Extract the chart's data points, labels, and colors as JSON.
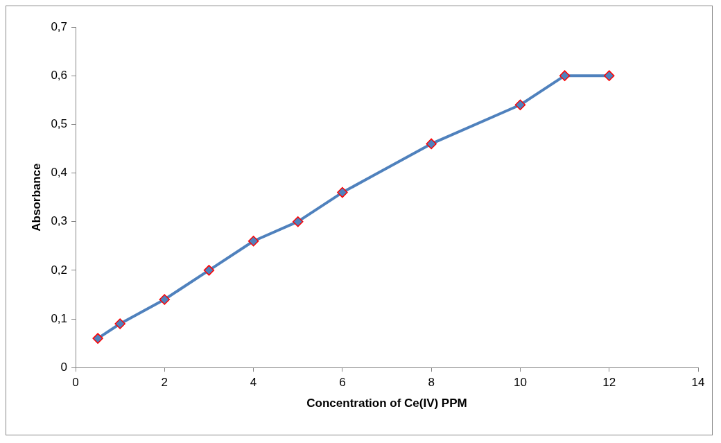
{
  "chart_data": {
    "type": "line",
    "xlabel": "Concentration of Ce(IV) PPM",
    "ylabel": "Absorbance",
    "x": [
      0.5,
      1,
      2,
      3,
      4,
      5,
      6,
      8,
      10,
      11,
      12
    ],
    "series": [
      {
        "color": "#4f81bd",
        "values": [
          0.06,
          0.09,
          0.14,
          0.2,
          0.26,
          0.3,
          0.36,
          0.46,
          0.54,
          0.6,
          0.6
        ]
      }
    ],
    "xlim": [
      0,
      14
    ],
    "xticks": [
      0,
      2,
      4,
      6,
      8,
      10,
      12,
      14
    ],
    "ylim": [
      0,
      0.7
    ],
    "yticks": [
      0,
      {
        "value": 0.1,
        "label": "0,1"
      },
      {
        "value": 0.2,
        "label": "0,2"
      },
      {
        "value": 0.3,
        "label": "0,3"
      },
      {
        "value": 0.4,
        "label": "0,4"
      },
      {
        "value": 0.5,
        "label": "0,5"
      },
      {
        "value": 0.6,
        "label": "0,6"
      },
      {
        "value": 0.7,
        "label": "0,7"
      }
    ],
    "marker": "diamond",
    "line_style": "solid",
    "grid": false,
    "legend": false
  }
}
